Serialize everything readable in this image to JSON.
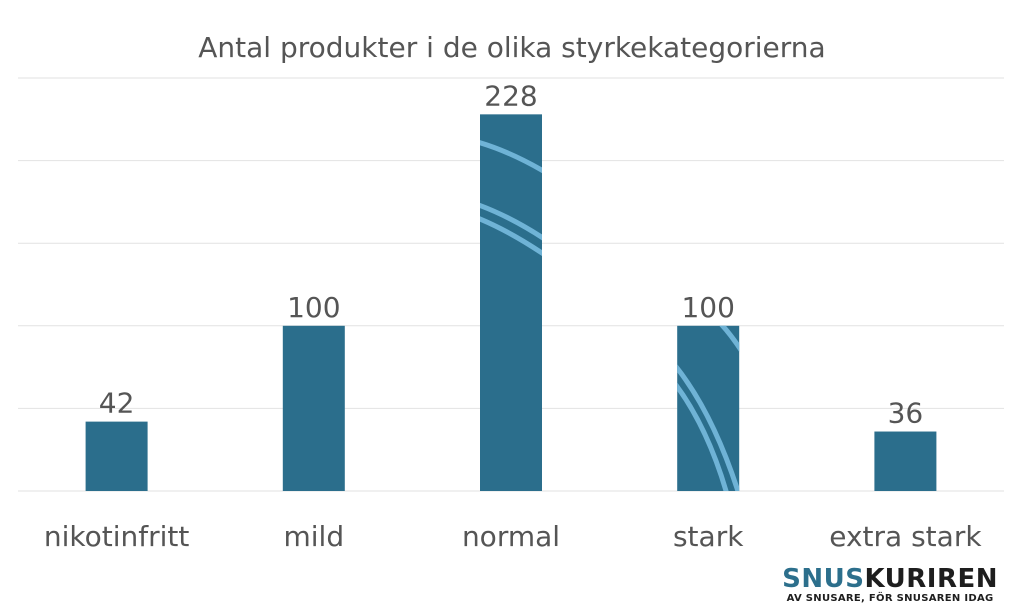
{
  "chart_data": {
    "type": "bar",
    "title": "Antal produkter i de olika styrkekategorierna",
    "categories": [
      "nikotinfritt",
      "mild",
      "normal",
      "stark",
      "extra stark"
    ],
    "values": [
      42,
      100,
      228,
      100,
      36
    ],
    "ylim": [
      0,
      250
    ],
    "grid": true,
    "bar_color": "#2b6e8c",
    "stripe_color": "#6fb3d6"
  },
  "logo": {
    "brand_part1": "SNUS",
    "brand_part2": "KURIREN",
    "tagline": "AV SNUSARE, FÖR SNUSAREN IDAG",
    "color_accent": "#2c6f8c",
    "color_dark": "#1e1e1e"
  }
}
